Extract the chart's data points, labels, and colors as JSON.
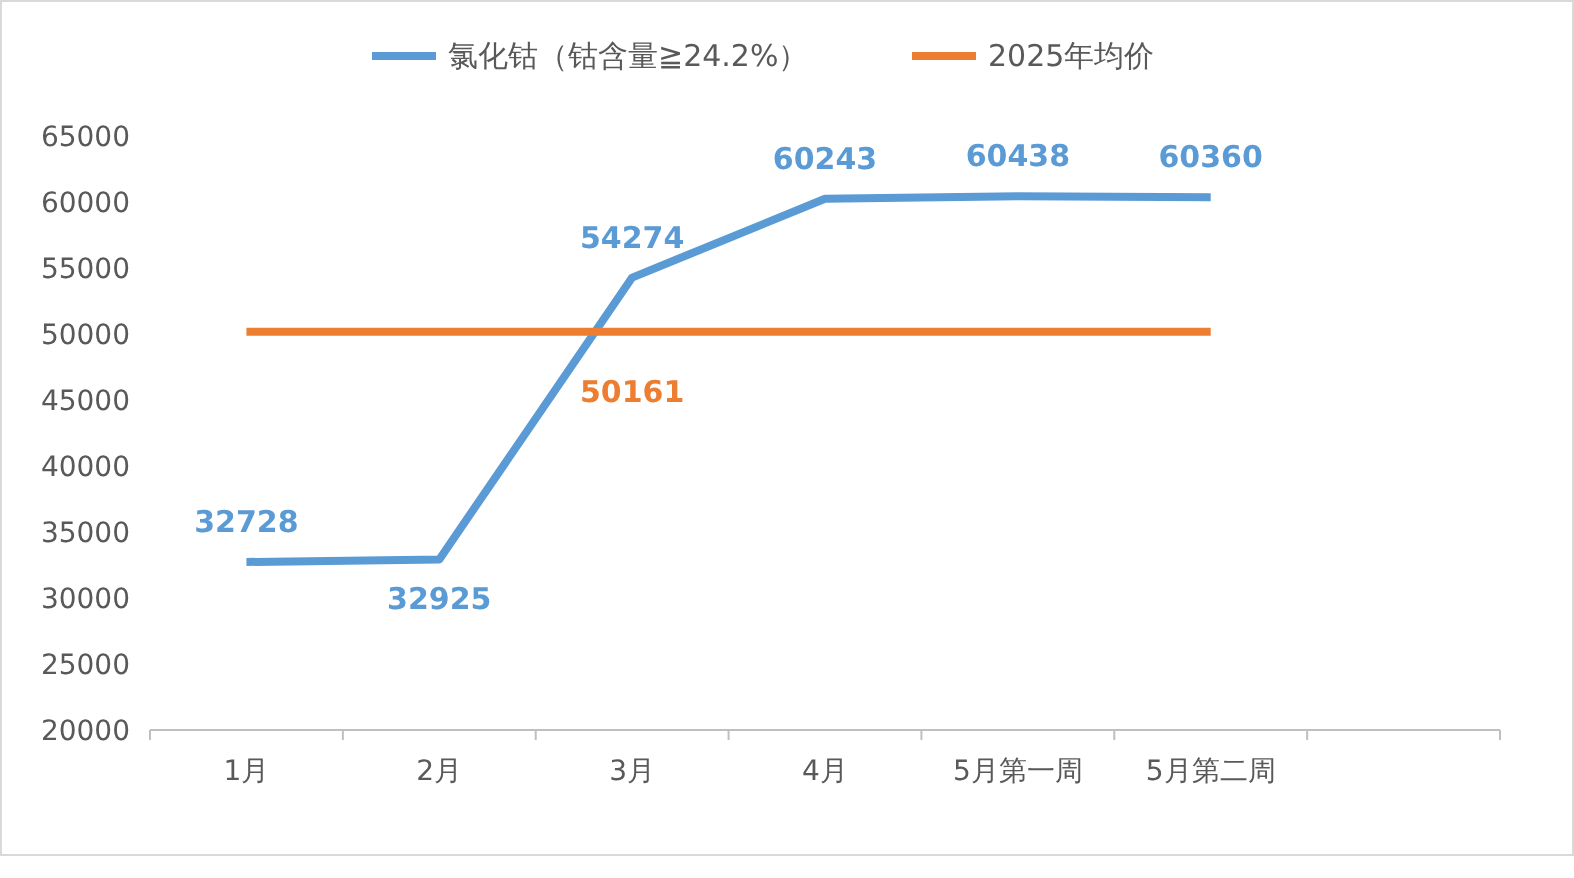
{
  "chart_data": {
    "type": "line",
    "categories": [
      "1月",
      "2月",
      "3月",
      "4月",
      "5月第一周",
      "5月第二周",
      null
    ],
    "series": [
      {
        "name": "氯化钴（钴含量≧24.2%）",
        "color": "#5b9bd5",
        "values": [
          32728,
          32925,
          54274,
          60243,
          60438,
          60360,
          null
        ],
        "value_labels": [
          "32728",
          "32925",
          "54274",
          "60243",
          "60438",
          "60360",
          null
        ]
      },
      {
        "name": "2025年均价",
        "color": "#ed7d31",
        "values": [
          50161,
          50161,
          50161,
          50161,
          50161,
          50161,
          null
        ],
        "value_labels": [
          null,
          null,
          "50161",
          null,
          null,
          null,
          null
        ]
      }
    ],
    "ylim": [
      20000,
      65000
    ],
    "yticks": [
      20000,
      25000,
      30000,
      35000,
      40000,
      45000,
      50000,
      55000,
      60000,
      65000
    ],
    "grid": false,
    "legend": "top",
    "marker": "none",
    "line_style": "solid"
  }
}
